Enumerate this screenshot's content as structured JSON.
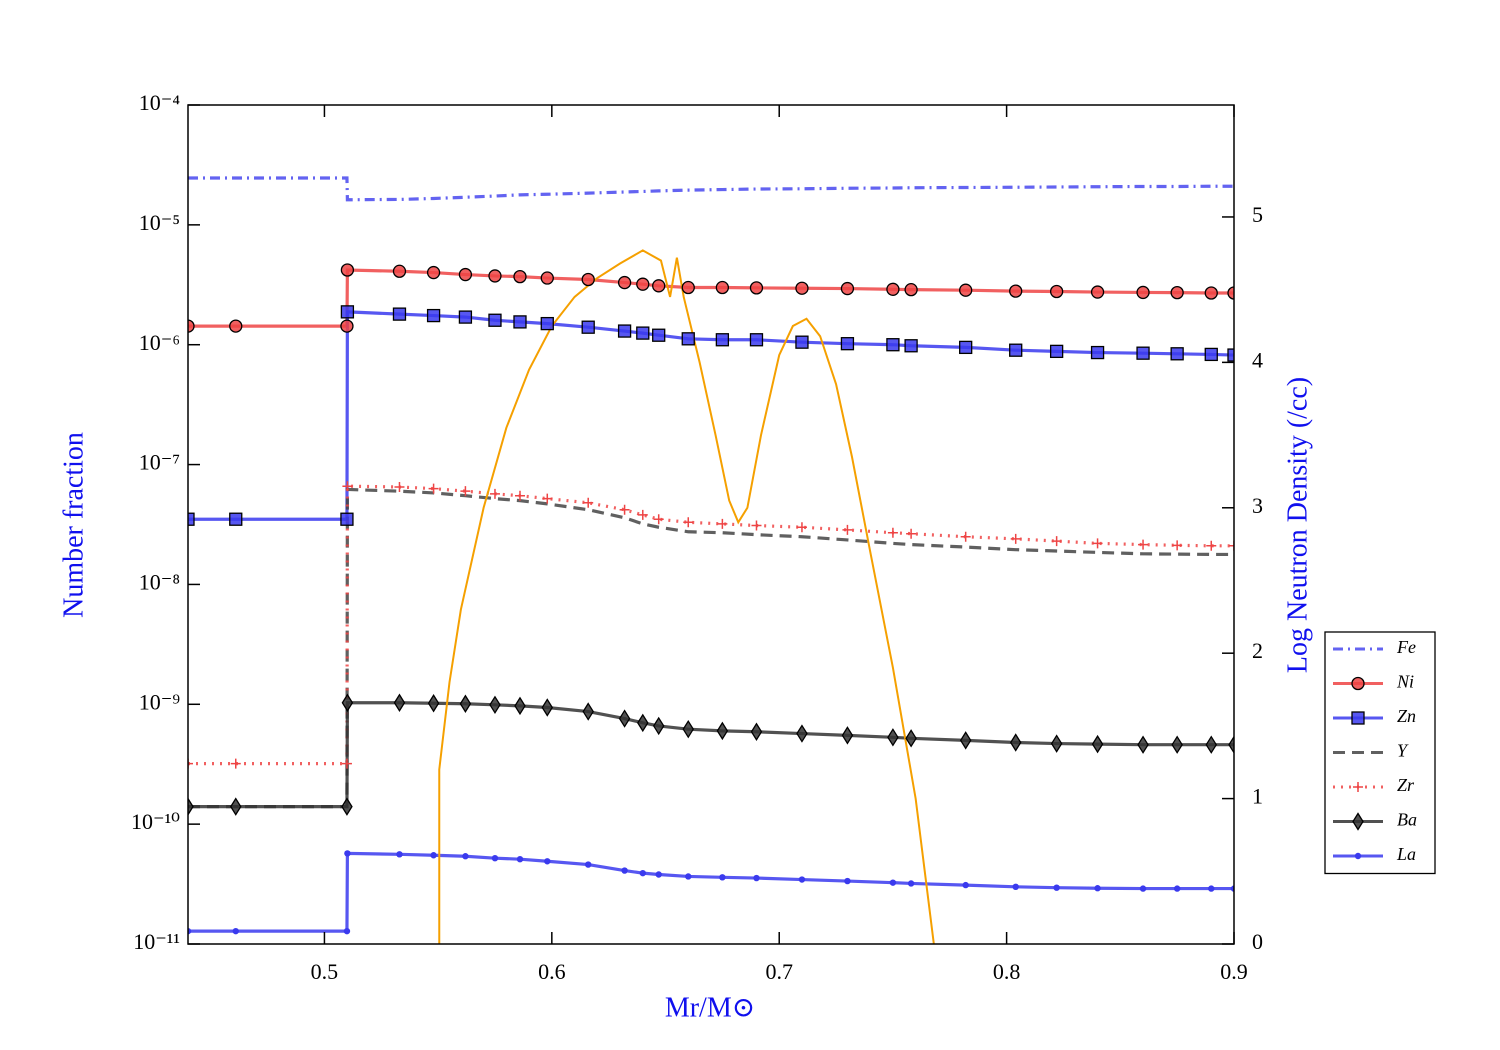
{
  "chart_data": {
    "type": "line",
    "xlabel": "Mr/M⊙",
    "ylabel": "Number fraction",
    "y2label": "Log Neutron Density (/cc)",
    "xlim": [
      0.44,
      0.9
    ],
    "xticks": [
      0.5,
      0.6,
      0.7,
      0.8,
      0.9
    ],
    "ylim": [
      1e-11,
      0.0001
    ],
    "ylog": true,
    "yticks": [
      {
        "value": 1e-11,
        "label": "10⁻¹¹"
      },
      {
        "value": 1e-10,
        "label": "10⁻¹⁰"
      },
      {
        "value": 1e-09,
        "label": "10⁻⁹"
      },
      {
        "value": 1e-08,
        "label": "10⁻⁸"
      },
      {
        "value": 1e-07,
        "label": "10⁻⁷"
      },
      {
        "value": 1e-06,
        "label": "10⁻⁶"
      },
      {
        "value": 1e-05,
        "label": "10⁻⁵"
      },
      {
        "value": 0.0001,
        "label": "10⁻⁴"
      }
    ],
    "y2lim": [
      0,
      5.77
    ],
    "y2ticks": [
      0,
      1,
      2,
      3,
      4,
      5
    ],
    "legend": "right",
    "x": [
      0.44,
      0.461,
      0.5099,
      0.5101,
      0.533,
      0.548,
      0.562,
      0.575,
      0.586,
      0.598,
      0.616,
      0.632,
      0.64,
      0.647,
      0.66,
      0.675,
      0.69,
      0.71,
      0.73,
      0.75,
      0.758,
      0.782,
      0.804,
      0.822,
      0.84,
      0.86,
      0.875,
      0.89,
      0.9
    ],
    "series": [
      {
        "name": "Fe",
        "color": "#4848ee",
        "linestyle": "dashdot",
        "marker": "none",
        "values": [
          2.46e-05,
          2.46e-05,
          2.46e-05,
          1.62e-05,
          1.63e-05,
          1.66e-05,
          1.7e-05,
          1.74e-05,
          1.78e-05,
          1.8e-05,
          1.84e-05,
          1.88e-05,
          1.9e-05,
          1.92e-05,
          1.95e-05,
          1.97e-05,
          1.99e-05,
          2e-05,
          2.02e-05,
          2.03e-05,
          2.04e-05,
          2.05e-05,
          2.06e-05,
          2.07e-05,
          2.08e-05,
          2.09e-05,
          2.09e-05,
          2.1e-05,
          2.1e-05
        ]
      },
      {
        "name": "Ni",
        "color": "#ee4444",
        "linestyle": "solid",
        "marker": "circle",
        "values": [
          1.43e-06,
          1.43e-06,
          1.43e-06,
          4.2e-06,
          4.1e-06,
          4e-06,
          3.85e-06,
          3.75e-06,
          3.7e-06,
          3.6e-06,
          3.5e-06,
          3.3e-06,
          3.2e-06,
          3.1e-06,
          3e-06,
          3e-06,
          2.98e-06,
          2.96e-06,
          2.94e-06,
          2.9e-06,
          2.88e-06,
          2.85e-06,
          2.8e-06,
          2.78e-06,
          2.75e-06,
          2.73e-06,
          2.72e-06,
          2.7e-06,
          2.7e-06
        ]
      },
      {
        "name": "Zn",
        "color": "#3a3aee",
        "linestyle": "solid",
        "marker": "square",
        "values": [
          3.5e-08,
          3.5e-08,
          3.5e-08,
          1.88e-06,
          1.8e-06,
          1.75e-06,
          1.7e-06,
          1.6e-06,
          1.55e-06,
          1.5e-06,
          1.4e-06,
          1.3e-06,
          1.25e-06,
          1.2e-06,
          1.12e-06,
          1.1e-06,
          1.1e-06,
          1.05e-06,
          1.02e-06,
          1e-06,
          9.8e-07,
          9.5e-07,
          9e-07,
          8.8e-07,
          8.6e-07,
          8.5e-07,
          8.4e-07,
          8.3e-07,
          8.2e-07
        ]
      },
      {
        "name": "Y",
        "color": "#444444",
        "linestyle": "dashed",
        "marker": "none",
        "values": [
          1.4e-10,
          1.4e-10,
          1.4e-10,
          6.2e-08,
          6e-08,
          5.8e-08,
          5.5e-08,
          5.2e-08,
          5e-08,
          4.7e-08,
          4.2e-08,
          3.6e-08,
          3.2e-08,
          3e-08,
          2.75e-08,
          2.7e-08,
          2.6e-08,
          2.5e-08,
          2.35e-08,
          2.2e-08,
          2.15e-08,
          2.05e-08,
          1.95e-08,
          1.9e-08,
          1.85e-08,
          1.8e-08,
          1.79e-08,
          1.78e-08,
          1.78e-08
        ]
      },
      {
        "name": "Zr",
        "color": "#ee4444",
        "linestyle": "dotted",
        "marker": "plus",
        "values": [
          3.2e-10,
          3.2e-10,
          3.2e-10,
          6.6e-08,
          6.5e-08,
          6.3e-08,
          6e-08,
          5.7e-08,
          5.5e-08,
          5.2e-08,
          4.8e-08,
          4.2e-08,
          3.8e-08,
          3.5e-08,
          3.3e-08,
          3.2e-08,
          3.1e-08,
          3e-08,
          2.85e-08,
          2.7e-08,
          2.65e-08,
          2.5e-08,
          2.4e-08,
          2.3e-08,
          2.2e-08,
          2.15e-08,
          2.12e-08,
          2.1e-08,
          2.1e-08
        ]
      },
      {
        "name": "Ba",
        "color": "#333333",
        "linestyle": "solid",
        "marker": "diamond",
        "values": [
          1.4e-10,
          1.4e-10,
          1.4e-10,
          1.03e-09,
          1.03e-09,
          1.02e-09,
          1.01e-09,
          9.9e-10,
          9.7e-10,
          9.4e-10,
          8.7e-10,
          7.6e-10,
          7e-10,
          6.6e-10,
          6.2e-10,
          6e-10,
          5.9e-10,
          5.7e-10,
          5.5e-10,
          5.3e-10,
          5.2e-10,
          5e-10,
          4.8e-10,
          4.7e-10,
          4.65e-10,
          4.6e-10,
          4.6e-10,
          4.6e-10,
          4.6e-10
        ]
      },
      {
        "name": "La",
        "color": "#3a3aee",
        "linestyle": "solid",
        "marker": "dot",
        "values": [
          1.28e-11,
          1.28e-11,
          1.28e-11,
          5.7e-11,
          5.6e-11,
          5.5e-11,
          5.4e-11,
          5.2e-11,
          5.1e-11,
          4.9e-11,
          4.6e-11,
          4.1e-11,
          3.9e-11,
          3.8e-11,
          3.66e-11,
          3.6e-11,
          3.55e-11,
          3.45e-11,
          3.35e-11,
          3.25e-11,
          3.2e-11,
          3.1e-11,
          3e-11,
          2.95e-11,
          2.92e-11,
          2.9e-11,
          2.9e-11,
          2.9e-11,
          2.9e-11
        ]
      },
      {
        "color": "#f5a000",
        "linestyle": "solid",
        "marker": "none",
        "axis": "y2",
        "x": [
          0.5505,
          0.5505,
          0.555,
          0.56,
          0.57,
          0.58,
          0.59,
          0.6,
          0.61,
          0.62,
          0.63,
          0.64,
          0.648,
          0.652,
          0.655,
          0.658,
          0.665,
          0.672,
          0.678,
          0.682,
          0.686,
          0.692,
          0.7,
          0.706,
          0.712,
          0.718,
          0.725,
          0.732,
          0.74,
          0.75,
          0.76,
          0.768
        ],
        "values": [
          0,
          1.2,
          1.8,
          2.3,
          3.0,
          3.55,
          3.95,
          4.25,
          4.45,
          4.58,
          4.68,
          4.77,
          4.7,
          4.45,
          4.72,
          4.45,
          4.0,
          3.5,
          3.05,
          2.9,
          3.0,
          3.5,
          4.05,
          4.25,
          4.3,
          4.18,
          3.85,
          3.35,
          2.7,
          1.9,
          1.0,
          0
        ]
      }
    ]
  }
}
